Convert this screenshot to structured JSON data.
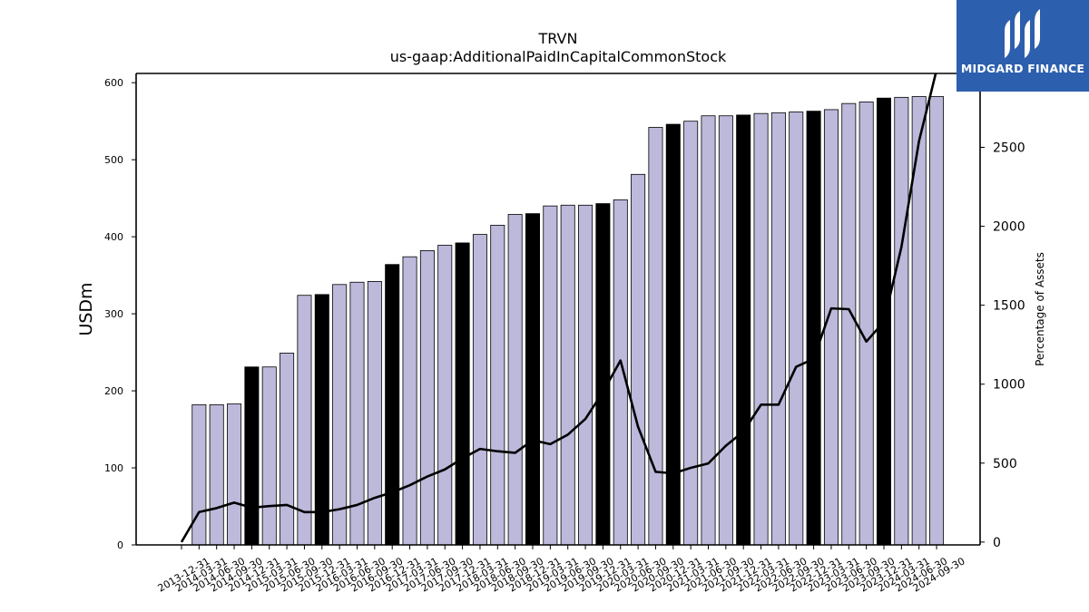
{
  "brand": {
    "name": "MIDGARD FINANCE",
    "bg_color": "#2c5fad",
    "icon": "midgard-logo-icon"
  },
  "chart_data": {
    "type": "bar",
    "title": "TRVN",
    "subtitle": "us-gaap:AdditionalPaidInCapitalCommonStock",
    "ylabel": "USDm",
    "y2label": "Percentage of Assets",
    "ylim": [
      0,
      612
    ],
    "y2lim": [
      -18,
      2968
    ],
    "yticks": [
      0,
      100,
      200,
      300,
      400,
      500,
      600
    ],
    "y2ticks": [
      0,
      500,
      1000,
      1500,
      2000,
      2500
    ],
    "grid": false,
    "bar_color": "#bcb9db",
    "highlight_color": "#000000",
    "line_color": "#000000",
    "categories": [
      "2013-12-31",
      "2014-03-31",
      "2014-06-30",
      "2014-09-30",
      "2014-12-31",
      "2015-03-31",
      "2015-06-30",
      "2015-09-30",
      "2015-12-31",
      "2016-03-31",
      "2016-06-30",
      "2016-09-30",
      "2016-12-31",
      "2017-03-31",
      "2017-06-30",
      "2017-09-30",
      "2017-12-31",
      "2018-03-31",
      "2018-06-30",
      "2018-09-30",
      "2018-12-31",
      "2019-03-31",
      "2019-06-30",
      "2019-09-30",
      "2019-12-31",
      "2020-03-31",
      "2020-06-30",
      "2020-09-30",
      "2020-12-31",
      "2021-03-31",
      "2021-06-30",
      "2021-09-30",
      "2021-12-31",
      "2022-03-31",
      "2022-06-30",
      "2022-09-30",
      "2022-12-31",
      "2023-03-31",
      "2023-06-30",
      "2023-09-30",
      "2023-12-31",
      "2024-03-31",
      "2024-06-30",
      "2024-09-30"
    ],
    "series": [
      {
        "kind": "bar",
        "values": [
          null,
          182,
          182,
          183,
          231,
          231,
          249,
          324,
          325,
          338,
          341,
          342,
          364,
          374,
          382,
          389,
          392,
          403,
          415,
          429,
          430,
          440,
          441,
          441,
          443,
          448,
          481,
          542,
          546,
          550,
          557,
          557,
          558,
          560,
          561,
          562,
          563,
          565,
          573,
          575,
          580,
          581,
          582,
          582
        ],
        "highlight": [
          false,
          false,
          false,
          false,
          true,
          false,
          false,
          false,
          true,
          false,
          false,
          false,
          true,
          false,
          false,
          false,
          true,
          false,
          false,
          false,
          true,
          false,
          false,
          false,
          true,
          false,
          false,
          false,
          true,
          false,
          false,
          false,
          true,
          false,
          false,
          false,
          true,
          false,
          false,
          false,
          true,
          false,
          false,
          false
        ]
      },
      {
        "kind": "line",
        "axis": "right",
        "values": [
          0,
          190,
          215,
          250,
          218,
          228,
          235,
          190,
          190,
          208,
          235,
          280,
          315,
          360,
          415,
          460,
          530,
          590,
          575,
          565,
          645,
          620,
          680,
          780,
          950,
          1150,
          730,
          445,
          435,
          470,
          498,
          610,
          700,
          870,
          870,
          1110,
          1160,
          1480,
          1475,
          1270,
          1395,
          1870,
          2540,
          2990
        ]
      }
    ]
  }
}
